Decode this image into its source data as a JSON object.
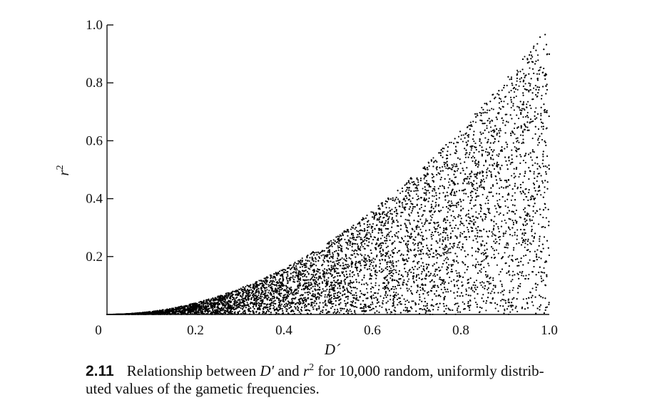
{
  "chart_data": {
    "type": "scatter",
    "xlabel": "D´",
    "ylabel": "r",
    "ylabel_sup": "2",
    "xlim": [
      0,
      1.0
    ],
    "ylim": [
      0,
      1.0
    ],
    "x_ticks": [
      {
        "value": 0,
        "label": "0"
      },
      {
        "value": 0.2,
        "label": "0.2"
      },
      {
        "value": 0.4,
        "label": "0.4"
      },
      {
        "value": 0.6,
        "label": "0.6"
      },
      {
        "value": 0.8,
        "label": "0.8"
      },
      {
        "value": 1.0,
        "label": "1.0"
      }
    ],
    "y_ticks": [
      {
        "value": 0.2,
        "label": "0.2"
      },
      {
        "value": 0.4,
        "label": "0.4"
      },
      {
        "value": 0.6,
        "label": "0.6"
      },
      {
        "value": 0.8,
        "label": "0.8"
      },
      {
        "value": 1.0,
        "label": "1.0"
      }
    ],
    "grid": false,
    "point_color": "#000000",
    "n_points": 10000,
    "upper_envelope": "r2 = D'^2",
    "series": [
      {
        "points_sample": [
          [
            0.05,
            0.001
          ],
          [
            0.1,
            0.005
          ],
          [
            0.15,
            0.01
          ],
          [
            0.2,
            0.02
          ],
          [
            0.25,
            0.03
          ],
          [
            0.3,
            0.05
          ],
          [
            0.35,
            0.07
          ],
          [
            0.4,
            0.1
          ],
          [
            0.45,
            0.12
          ],
          [
            0.5,
            0.15
          ],
          [
            0.55,
            0.18
          ],
          [
            0.6,
            0.2
          ],
          [
            0.65,
            0.25
          ],
          [
            0.7,
            0.3
          ],
          [
            0.75,
            0.35
          ],
          [
            0.8,
            0.4
          ],
          [
            0.85,
            0.45
          ],
          [
            0.9,
            0.5
          ],
          [
            0.95,
            0.6
          ],
          [
            1.0,
            1.0
          ]
        ]
      }
    ]
  },
  "caption": {
    "figure_number": "2.11",
    "line1_pre": "Relationship between ",
    "line1_d": "D′",
    "line1_mid": " and ",
    "line1_r": "r",
    "line1_r_sup": "2",
    "line1_post": " for 10,000 random, uniformly distrib-",
    "line2": "uted values of the gametic frequencies."
  }
}
